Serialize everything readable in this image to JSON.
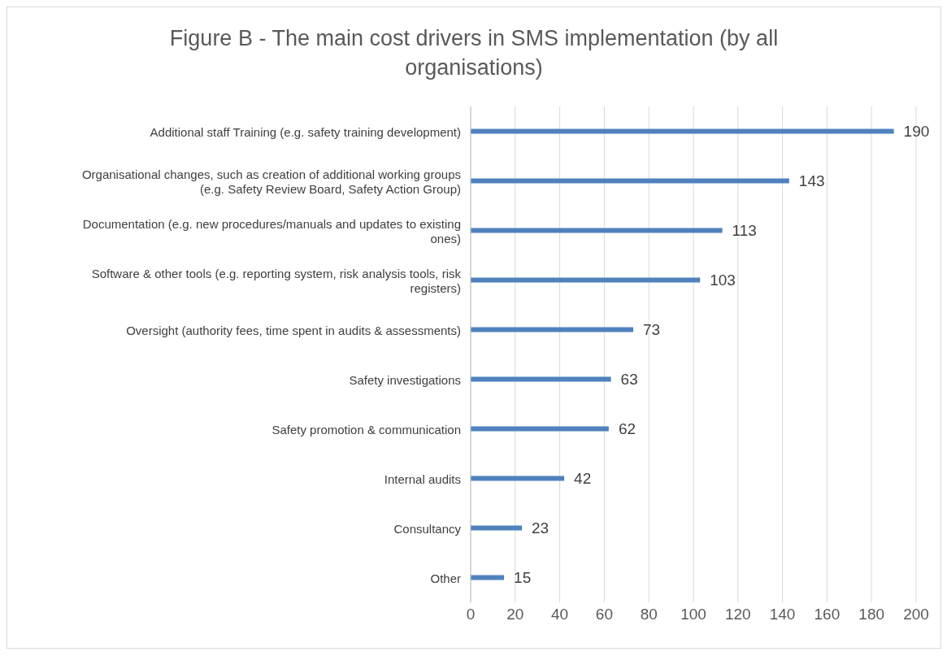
{
  "chart_data": {
    "type": "bar",
    "orientation": "horizontal",
    "title": "Figure B - The main cost drivers in SMS implementation (by all organisations)",
    "categories": [
      "Additional staff Training (e.g. safety training development)",
      "Organisational changes, such as creation of additional working groups (e.g. Safety Review Board, Safety Action Group)",
      "Documentation (e.g. new procedures/manuals and updates to existing ones)",
      "Software & other tools (e.g. reporting system, risk analysis tools, risk registers)",
      "Oversight (authority fees, time spent in audits & assessments)",
      "Safety investigations",
      "Safety promotion & communication",
      "Internal audits",
      "Consultancy",
      "Other"
    ],
    "values": [
      190,
      143,
      113,
      103,
      73,
      63,
      62,
      42,
      23,
      15
    ],
    "color": "#4f81bd",
    "xlim": [
      0,
      200
    ],
    "xticks": [
      0,
      20,
      40,
      60,
      80,
      100,
      120,
      140,
      160,
      180,
      200
    ],
    "grid": "x",
    "data_labels": true
  }
}
